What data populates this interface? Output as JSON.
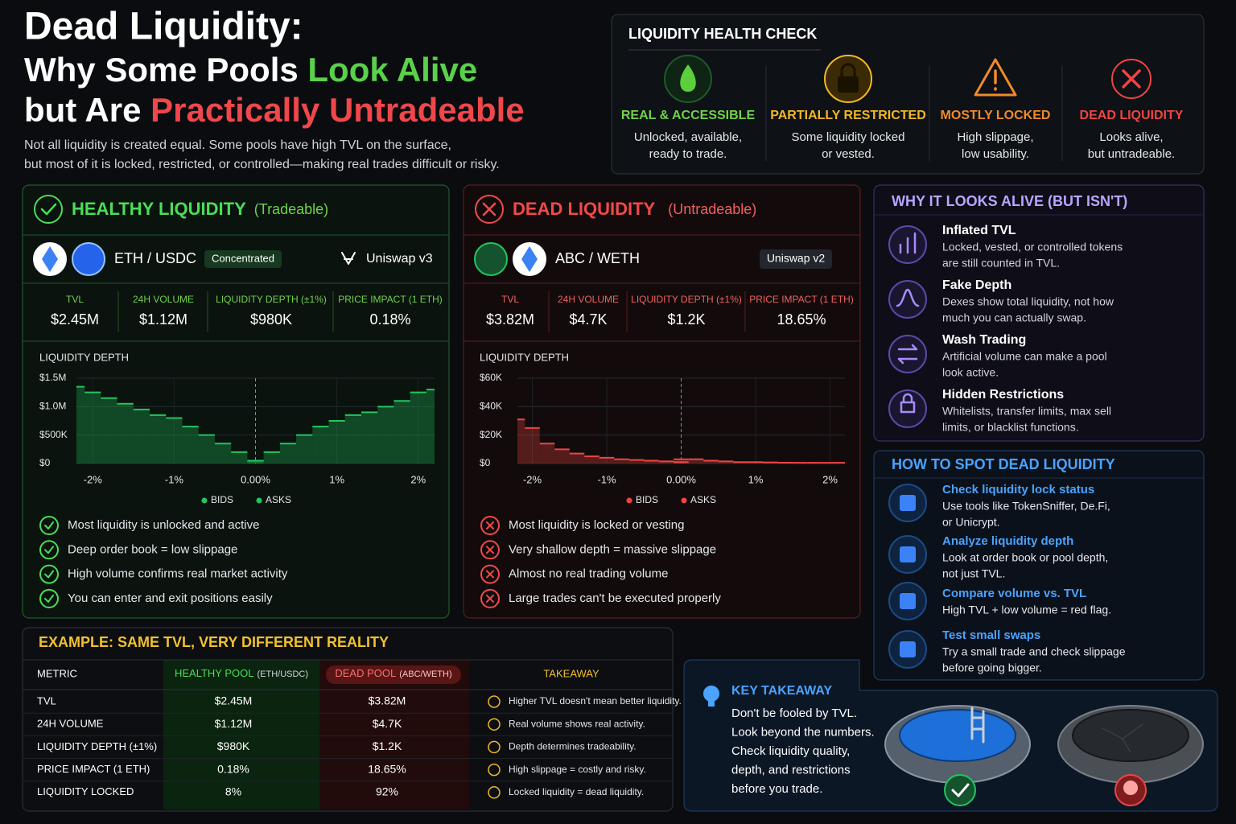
{
  "header": {
    "title": "Dead Liquidity:",
    "line2": [
      "Why Some Pools ",
      "Look Alive"
    ],
    "line3": [
      "but Are ",
      "Practically Untradeable"
    ],
    "subtitle": [
      "Not all liquidity is created equal. Some pools have high TVL on the surface,",
      "but most of it is locked, restricted, or controlled—making real trades difficult or risky."
    ]
  },
  "health_check": {
    "title": "LIQUIDITY HEALTH CHECK",
    "items": [
      {
        "label": "REAL & ACCESSIBLE",
        "lines": [
          "Unlocked, available,",
          "ready to trade."
        ]
      },
      {
        "label": "PARTIALLY RESTRICTED",
        "lines": [
          "Some liquidity locked",
          "or vested."
        ]
      },
      {
        "label": "MOSTLY LOCKED",
        "lines": [
          "High slippage,",
          "low usability."
        ]
      },
      {
        "label": "DEAD LIQUIDITY",
        "lines": [
          "Looks alive,",
          "but untradeable."
        ]
      }
    ]
  },
  "pools": [
    {
      "title": "HEALTHY LIQUIDITY",
      "tag": "(Tradeable)",
      "pair": "ETH / USDC",
      "badge": "Concentrated",
      "dex": "Uniswap v3",
      "stats": [
        {
          "label": "TVL",
          "value": "$2.45M"
        },
        {
          "label": "24H VOLUME",
          "value": "$1.12M"
        },
        {
          "label": "LIQUIDITY DEPTH (±1%)",
          "value": "$980K"
        },
        {
          "label": "PRICE IMPACT (1 ETH)",
          "value": "0.18%"
        }
      ],
      "points": [
        "Most liquidity is unlocked and active",
        "Deep order book = low slippage",
        "High volume confirms real market activity",
        "You can enter and exit positions easily"
      ]
    },
    {
      "title": "DEAD LIQUIDITY",
      "tag": "(Untradeable)",
      "pair": "ABC / WETH",
      "dex": "Uniswap v2",
      "stats": [
        {
          "label": "TVL",
          "value": "$3.82M"
        },
        {
          "label": "24H VOLUME",
          "value": "$4.7K"
        },
        {
          "label": "LIQUIDITY DEPTH (±1%)",
          "value": "$1.2K"
        },
        {
          "label": "PRICE IMPACT (1 ETH)",
          "value": "18.65%"
        }
      ],
      "points": [
        "Most liquidity is locked or vesting",
        "Very shallow depth = massive slippage",
        "Almost no real trading volume",
        "Large trades can't be executed properly"
      ]
    }
  ],
  "chart_data": [
    {
      "type": "step-area",
      "title": "LIQUIDITY DEPTH",
      "xlim": [
        -2.2,
        2.2
      ],
      "xticks": [
        {
          "value": -2,
          "label": "-2%"
        },
        {
          "value": -1,
          "label": "-1%"
        },
        {
          "value": 0,
          "label": "0.00%"
        },
        {
          "value": 1,
          "label": "1%"
        },
        {
          "value": 2,
          "label": "2%"
        }
      ],
      "ylim": [
        0,
        1500000
      ],
      "yticks": [
        {
          "value": 0,
          "label": "$0"
        },
        {
          "value": 500000,
          "label": "$500K"
        },
        {
          "value": 1000000,
          "label": "$1.0M"
        },
        {
          "value": 1500000,
          "label": "$1.5M"
        }
      ],
      "grid": true,
      "legend": "bottom",
      "series": [
        {
          "name": "BIDS",
          "color": "#22c55e",
          "x": [
            -2.2,
            -2.0,
            -1.8,
            -1.6,
            -1.4,
            -1.2,
            -1.0,
            -0.8,
            -0.6,
            -0.4,
            -0.2,
            0.0
          ],
          "values": [
            1350000,
            1250000,
            1150000,
            1050000,
            950000,
            850000,
            800000,
            650000,
            500000,
            350000,
            200000,
            50000
          ]
        },
        {
          "name": "ASKS",
          "color": "#22c55e",
          "x": [
            0.0,
            0.2,
            0.4,
            0.6,
            0.8,
            1.0,
            1.2,
            1.4,
            1.6,
            1.8,
            2.0,
            2.2
          ],
          "values": [
            50000,
            200000,
            350000,
            500000,
            650000,
            750000,
            850000,
            900000,
            1000000,
            1100000,
            1250000,
            1300000
          ]
        }
      ]
    },
    {
      "type": "step-area",
      "title": "LIQUIDITY DEPTH",
      "xlim": [
        -2.2,
        2.2
      ],
      "xticks": [
        {
          "value": -2,
          "label": "-2%"
        },
        {
          "value": -1,
          "label": "-1%"
        },
        {
          "value": 0,
          "label": "0.00%"
        },
        {
          "value": 1,
          "label": "1%"
        },
        {
          "value": 2,
          "label": "2%"
        }
      ],
      "ylim": [
        0,
        60000
      ],
      "yticks": [
        {
          "value": 0,
          "label": "$0"
        },
        {
          "value": 20000,
          "label": "$20K"
        },
        {
          "value": 40000,
          "label": "$40K"
        },
        {
          "value": 60000,
          "label": "$60K"
        }
      ],
      "grid": true,
      "legend": "bottom",
      "series": [
        {
          "name": "BIDS",
          "color": "#ef4444",
          "x": [
            -2.2,
            -2.0,
            -1.8,
            -1.6,
            -1.4,
            -1.2,
            -1.0,
            -0.8,
            -0.6,
            -0.4,
            -0.2,
            0.0
          ],
          "values": [
            31000,
            25000,
            14000,
            10000,
            7000,
            5000,
            4000,
            3000,
            2500,
            2000,
            1500,
            1000
          ]
        },
        {
          "name": "ASKS",
          "color": "#ef4444",
          "x": [
            0.0,
            0.2,
            0.4,
            0.6,
            0.8,
            1.0,
            1.2,
            1.4,
            1.6,
            1.8,
            2.0,
            2.2
          ],
          "values": [
            3000,
            3000,
            2000,
            1500,
            1000,
            1000,
            800,
            600,
            500,
            500,
            500,
            500
          ]
        }
      ]
    }
  ],
  "why": {
    "title": "WHY IT LOOKS ALIVE (BUT ISN'T)",
    "items": [
      {
        "title": "Inflated TVL",
        "lines": [
          "Locked, vested, or controlled tokens",
          "are still counted in TVL."
        ]
      },
      {
        "title": "Fake Depth",
        "lines": [
          "Dexes show total liquidity, not how",
          "much you can actually swap."
        ]
      },
      {
        "title": "Wash Trading",
        "lines": [
          "Artificial volume can make a pool",
          "look active."
        ]
      },
      {
        "title": "Hidden Restrictions",
        "lines": [
          "Whitelists, transfer limits, max sell",
          "limits, or blacklist functions."
        ]
      }
    ]
  },
  "spot": {
    "title": "HOW TO SPOT DEAD LIQUIDITY",
    "items": [
      {
        "title": "Check liquidity lock status",
        "lines": [
          "Use tools like TokenSniffer, De.Fi,",
          "or Unicrypt."
        ]
      },
      {
        "title": "Analyze liquidity depth",
        "lines": [
          "Look at order book or pool depth,",
          "not just TVL."
        ]
      },
      {
        "title": "Compare volume vs. TVL",
        "lines": [
          "High TVL + low volume = red flag."
        ]
      },
      {
        "title": "Test small swaps",
        "lines": [
          "Try a small trade and check slippage",
          "before going bigger."
        ]
      }
    ]
  },
  "example": {
    "title": "EXAMPLE: SAME TVL, VERY DIFFERENT REALITY",
    "headers": {
      "metric": "METRIC",
      "healthy": "HEALTHY POOL",
      "healthy_sub": "(ETH/USDC)",
      "dead": "DEAD POOL",
      "dead_sub": "(ABC/WETH)",
      "takeaway": "TAKEAWAY"
    },
    "rows": [
      [
        "TVL",
        "$2.45M",
        "$3.82M",
        "Higher TVL doesn't mean better liquidity."
      ],
      [
        "24H VOLUME",
        "$1.12M",
        "$4.7K",
        "Real volume shows real activity."
      ],
      [
        "LIQUIDITY DEPTH (±1%)",
        "$980K",
        "$1.2K",
        "Depth determines tradeability."
      ],
      [
        "PRICE IMPACT (1 ETH)",
        "0.18%",
        "18.65%",
        "High slippage = costly and risky."
      ],
      [
        "LIQUIDITY LOCKED",
        "8%",
        "92%",
        "Locked liquidity = dead liquidity."
      ]
    ]
  },
  "key_takeaway": {
    "title": "KEY TAKEAWAY",
    "lines": [
      "Don't be fooled by TVL.",
      "Look beyond the numbers.",
      "Check liquidity quality,",
      "depth, and restrictions",
      "before you trade."
    ]
  }
}
